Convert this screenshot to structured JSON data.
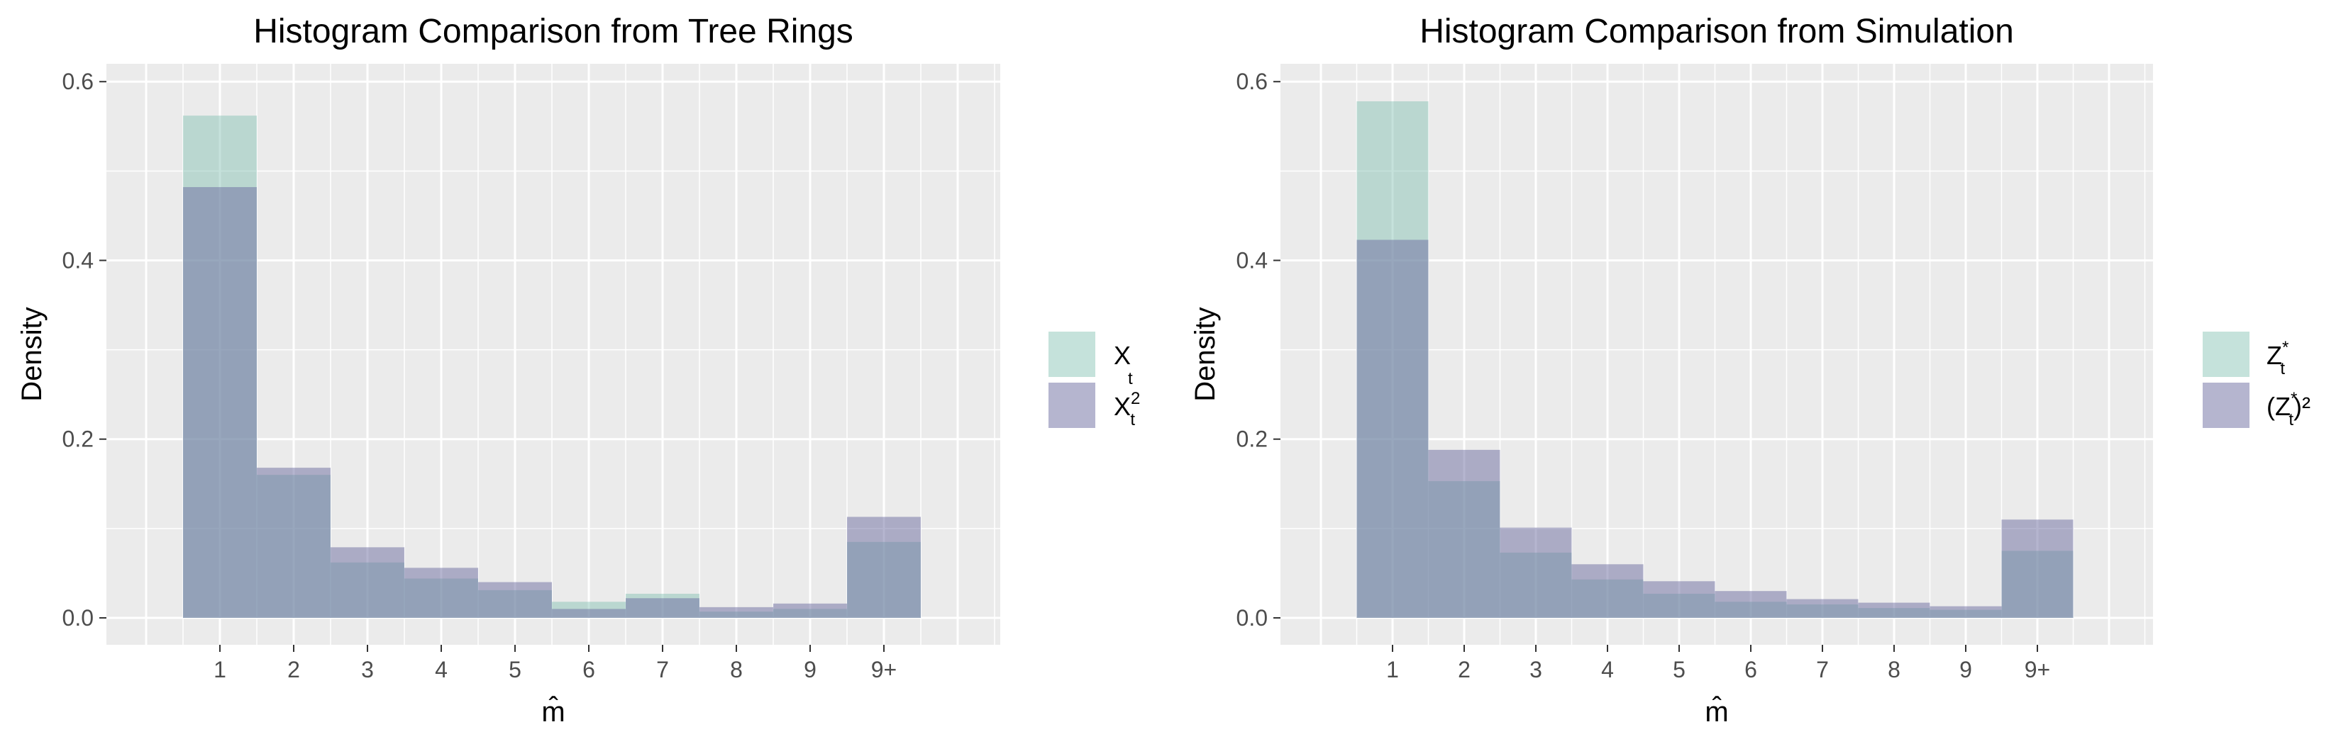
{
  "chart_data": [
    {
      "type": "bar",
      "title": "Histogram Comparison from Tree Rings",
      "xlabel": "m̂",
      "ylabel": "Density",
      "categories": [
        "1",
        "2",
        "3",
        "4",
        "5",
        "6",
        "7",
        "8",
        "9",
        "9+"
      ],
      "ylim": [
        0,
        0.62
      ],
      "yticks": [
        0.0,
        0.2,
        0.4,
        0.6
      ],
      "ytick_labels": [
        "0.0",
        "0.2",
        "0.4",
        "0.6"
      ],
      "grid": true,
      "legend_position": "right",
      "series": [
        {
          "name": "X_t",
          "legend_base": "X",
          "legend_sub": "t",
          "legend_sup": "",
          "legend_prefix": "",
          "legend_suffix": "",
          "color": "#7fbfb0",
          "values": [
            0.562,
            0.16,
            0.062,
            0.044,
            0.031,
            0.018,
            0.027,
            0.007,
            0.01,
            0.085
          ]
        },
        {
          "name": "X_t^2",
          "legend_base": "X",
          "legend_sub": "t",
          "legend_sup": "2",
          "legend_prefix": "",
          "legend_suffix": "",
          "color": "#6c6ba0",
          "values": [
            0.482,
            0.168,
            0.079,
            0.056,
            0.04,
            0.01,
            0.022,
            0.012,
            0.016,
            0.113
          ]
        }
      ]
    },
    {
      "type": "bar",
      "title": "Histogram Comparison from Simulation",
      "xlabel": "m̂",
      "ylabel": "Density",
      "categories": [
        "1",
        "2",
        "3",
        "4",
        "5",
        "6",
        "7",
        "8",
        "9",
        "9+"
      ],
      "ylim": [
        0,
        0.62
      ],
      "yticks": [
        0.0,
        0.2,
        0.4,
        0.6
      ],
      "ytick_labels": [
        "0.0",
        "0.2",
        "0.4",
        "0.6"
      ],
      "grid": true,
      "legend_position": "right",
      "series": [
        {
          "name": "Z_t^*",
          "legend_base": "Z",
          "legend_sub": "t",
          "legend_sup": "*",
          "legend_prefix": "",
          "legend_suffix": "",
          "color": "#7fbfb0",
          "values": [
            0.578,
            0.153,
            0.073,
            0.043,
            0.027,
            0.018,
            0.015,
            0.011,
            0.009,
            0.075
          ]
        },
        {
          "name": "(Z_t^*)^2",
          "legend_base": "Z",
          "legend_sub": "t",
          "legend_sup": "*",
          "legend_prefix": "(",
          "legend_suffix": ")²",
          "color": "#6c6ba0",
          "values": [
            0.423,
            0.188,
            0.101,
            0.06,
            0.041,
            0.03,
            0.021,
            0.017,
            0.013,
            0.11
          ]
        }
      ]
    }
  ]
}
